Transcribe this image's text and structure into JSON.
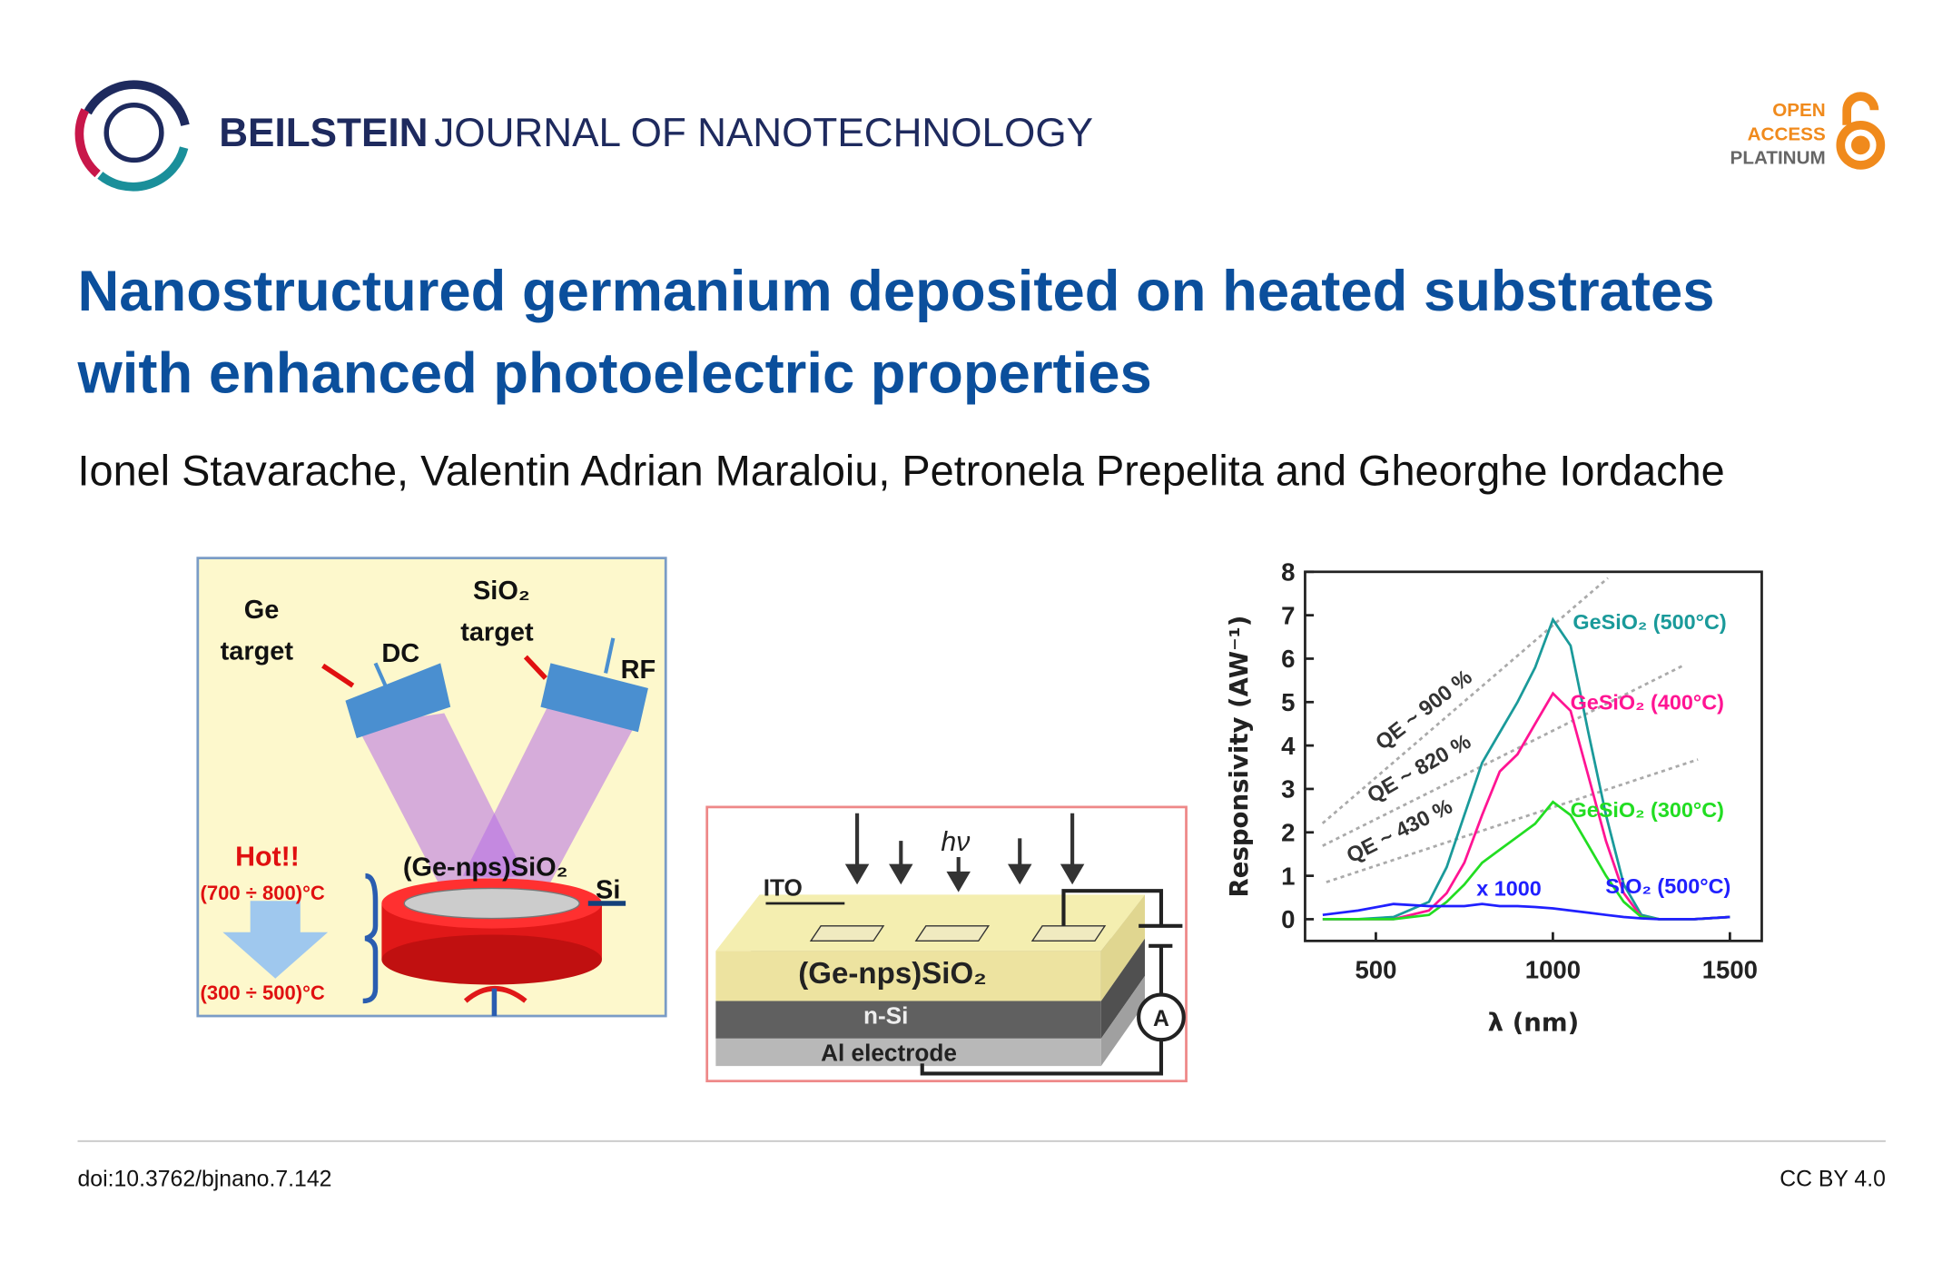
{
  "header": {
    "brand": "BEILSTEIN",
    "journal": "JOURNAL OF NANOTECHNOLOGY",
    "badge": [
      "OPEN",
      "ACCESS",
      "PLATINUM"
    ]
  },
  "title": [
    "Nanostructured germanium deposited on heated substrates",
    "with enhanced photoelectric properties"
  ],
  "authors": "Ionel Stavarache, Valentin Adrian Maraloiu, Petronela Prepelita and Gheorghe Iordache",
  "figure": {
    "left_panel": {
      "ge_label": [
        "Ge",
        "target"
      ],
      "dc": "DC",
      "sio2_label": [
        "SiO₂",
        "target"
      ],
      "rf": "RF",
      "hot": "Hot!!",
      "high_temp": "(700 ÷ 800)°C",
      "low_temp": "(300 ÷ 500)°C",
      "film": "(Ge-nps)SiO₂",
      "si": "Si"
    },
    "middle_panel": {
      "hv": "hν",
      "ito": "ITO",
      "film": "(Ge-nps)SiO₂",
      "nsi": "n-Si",
      "al": "Al electrode",
      "ammeter": "A"
    }
  },
  "chart_data": {
    "type": "line",
    "x_label": "λ (nm)",
    "y_label": "Responsivity (AW⁻¹)",
    "x": [
      350,
      450,
      550,
      650,
      700,
      750,
      800,
      850,
      900,
      950,
      1000,
      1050,
      1100,
      1150,
      1200,
      1250,
      1300,
      1400,
      1500
    ],
    "series": [
      {
        "name": "GeSiO₂ (500°C)",
        "color": "#1a9a9a",
        "values": [
          0,
          0,
          0.05,
          0.4,
          1.2,
          2.4,
          3.6,
          4.3,
          5.0,
          5.8,
          6.9,
          6.3,
          4.3,
          2.4,
          0.8,
          0.1,
          0,
          0,
          0.05
        ]
      },
      {
        "name": "GeSiO₂ (400°C)",
        "color": "#ff1493",
        "values": [
          0,
          0,
          0,
          0.2,
          0.6,
          1.3,
          2.4,
          3.4,
          3.8,
          4.5,
          5.2,
          4.8,
          3.3,
          1.8,
          0.6,
          0.05,
          0,
          0,
          0.05
        ]
      },
      {
        "name": "GeSiO₂ (300°C)",
        "color": "#22dd22",
        "values": [
          0,
          0,
          0,
          0.1,
          0.4,
          0.8,
          1.3,
          1.6,
          1.9,
          2.2,
          2.7,
          2.4,
          1.7,
          1.0,
          0.4,
          0.05,
          0,
          0,
          0.05
        ]
      },
      {
        "name": "SiO₂ (500°C)",
        "color": "#2020ff",
        "values": [
          0.1,
          0.2,
          0.35,
          0.3,
          0.3,
          0.3,
          0.35,
          0.3,
          0.3,
          0.28,
          0.25,
          0.2,
          0.15,
          0.1,
          0.05,
          0.02,
          0,
          0,
          0.05
        ]
      }
    ],
    "xlim": [
      300,
      1590
    ],
    "ylim": [
      -0.5,
      8
    ],
    "xticks": [
      500,
      1000,
      1500
    ],
    "yticks": [
      0,
      1,
      2,
      3,
      4,
      5,
      6,
      7,
      8
    ],
    "annotations": [
      "QE ~ 900 %",
      "QE ~ 820 %",
      "QE ~ 430 %",
      "x 1000"
    ]
  },
  "footer": {
    "doi": "doi:10.3762/bjnano.7.142",
    "license": "CC BY 4.0"
  }
}
